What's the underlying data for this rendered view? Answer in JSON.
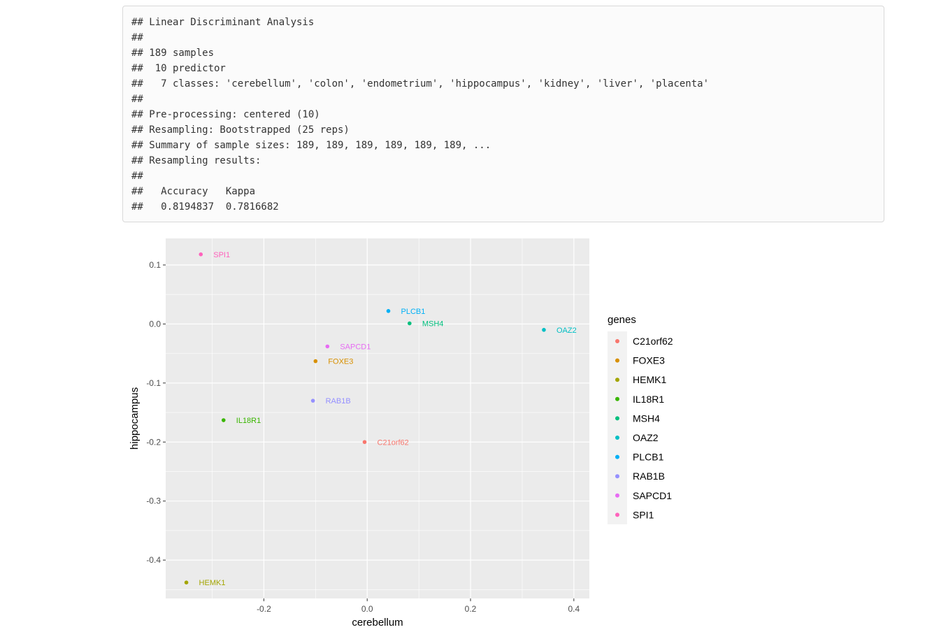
{
  "console": {
    "lines": [
      "## Linear Discriminant Analysis",
      "##",
      "## 189 samples",
      "##  10 predictor",
      "##   7 classes: 'cerebellum', 'colon', 'endometrium', 'hippocampus', 'kidney', 'liver', 'placenta'",
      "##",
      "## Pre-processing: centered (10)",
      "## Resampling: Bootstrapped (25 reps)",
      "## Summary of sample sizes: 189, 189, 189, 189, 189, 189, ...",
      "## Resampling results:",
      "##",
      "##   Accuracy   Kappa",
      "##   0.8194837  0.7816682"
    ]
  },
  "chart_data": {
    "type": "scatter",
    "title": "",
    "xlabel": "cerebellum",
    "ylabel": "hippocampus",
    "xlim": [
      -0.39,
      0.43
    ],
    "ylim": [
      -0.465,
      0.145
    ],
    "xticks": [
      -0.2,
      0.0,
      0.2,
      0.4
    ],
    "xtick_labels": [
      "-0.2",
      "0.0",
      "0.2",
      "0.4"
    ],
    "yticks": [
      0.1,
      0.0,
      -0.1,
      -0.2,
      -0.3,
      -0.4
    ],
    "ytick_labels": [
      "0.1",
      "0.0",
      "-0.1",
      "-0.2",
      "-0.3",
      "-0.4"
    ],
    "grid": true,
    "panel_background": "#ebebeb",
    "legend": {
      "title": "genes",
      "position": "right"
    },
    "points": [
      {
        "gene": "C21orf62",
        "x": -0.005,
        "y": -0.2,
        "color": "#F8766D"
      },
      {
        "gene": "FOXE3",
        "x": -0.1,
        "y": -0.063,
        "color": "#D89000"
      },
      {
        "gene": "HEMK1",
        "x": -0.35,
        "y": -0.438,
        "color": "#A3A500"
      },
      {
        "gene": "IL18R1",
        "x": -0.278,
        "y": -0.163,
        "color": "#39B600"
      },
      {
        "gene": "MSH4",
        "x": 0.082,
        "y": 0.001,
        "color": "#00BF7D"
      },
      {
        "gene": "OAZ2",
        "x": 0.342,
        "y": -0.01,
        "color": "#00BFC4"
      },
      {
        "gene": "PLCB1",
        "x": 0.041,
        "y": 0.022,
        "color": "#00B0F6"
      },
      {
        "gene": "RAB1B",
        "x": -0.105,
        "y": -0.13,
        "color": "#9590FF"
      },
      {
        "gene": "SAPCD1",
        "x": -0.077,
        "y": -0.038,
        "color": "#E76BF3"
      },
      {
        "gene": "SPI1",
        "x": -0.322,
        "y": 0.118,
        "color": "#FF62BC"
      }
    ]
  }
}
